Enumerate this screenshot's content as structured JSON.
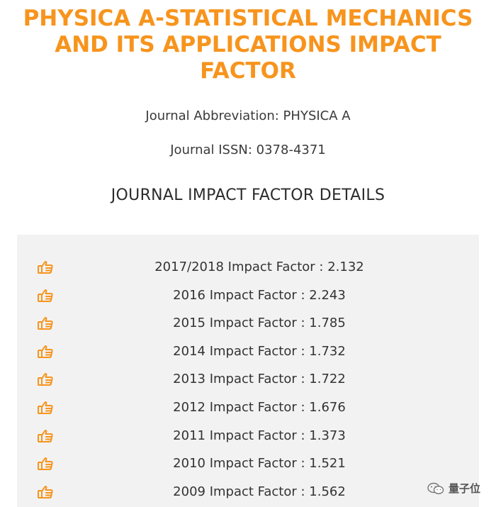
{
  "page": {
    "title_lines": [
      "PHYSICA A-STATISTICAL MECHANICS",
      "AND ITS APPLICATIONS IMPACT",
      "FACTOR"
    ],
    "abbreviation": "Journal Abbreviation: PHYSICA A",
    "issn": "Journal ISSN: 0378-4371",
    "section_heading": "JOURNAL IMPACT FACTOR DETAILS"
  },
  "impact_factors": [
    {
      "text": "2017/2018 Impact Factor : 2.132",
      "icon": "thumbs-up-icon"
    },
    {
      "text": "2016 Impact Factor : 2.243",
      "icon": "thumbs-up-icon"
    },
    {
      "text": "2015 Impact Factor : 1.785",
      "icon": "thumbs-up-icon"
    },
    {
      "text": "2014 Impact Factor : 1.732",
      "icon": "thumbs-up-icon"
    },
    {
      "text": "2013 Impact Factor : 1.722",
      "icon": "thumbs-up-icon"
    },
    {
      "text": "2012 Impact Factor : 1.676",
      "icon": "thumbs-up-icon"
    },
    {
      "text": "2011 Impact Factor : 1.373",
      "icon": "thumbs-up-icon"
    },
    {
      "text": "2010 Impact Factor : 1.521",
      "icon": "thumbs-up-icon"
    },
    {
      "text": "2009 Impact Factor : 1.562",
      "icon": "thumbs-up-icon"
    }
  ],
  "watermark": {
    "text": "量子位",
    "icon": "wechat-icon"
  },
  "colors": {
    "accent": "#f7941d",
    "panel_background": "#f2f2f2",
    "text": "#333333"
  }
}
